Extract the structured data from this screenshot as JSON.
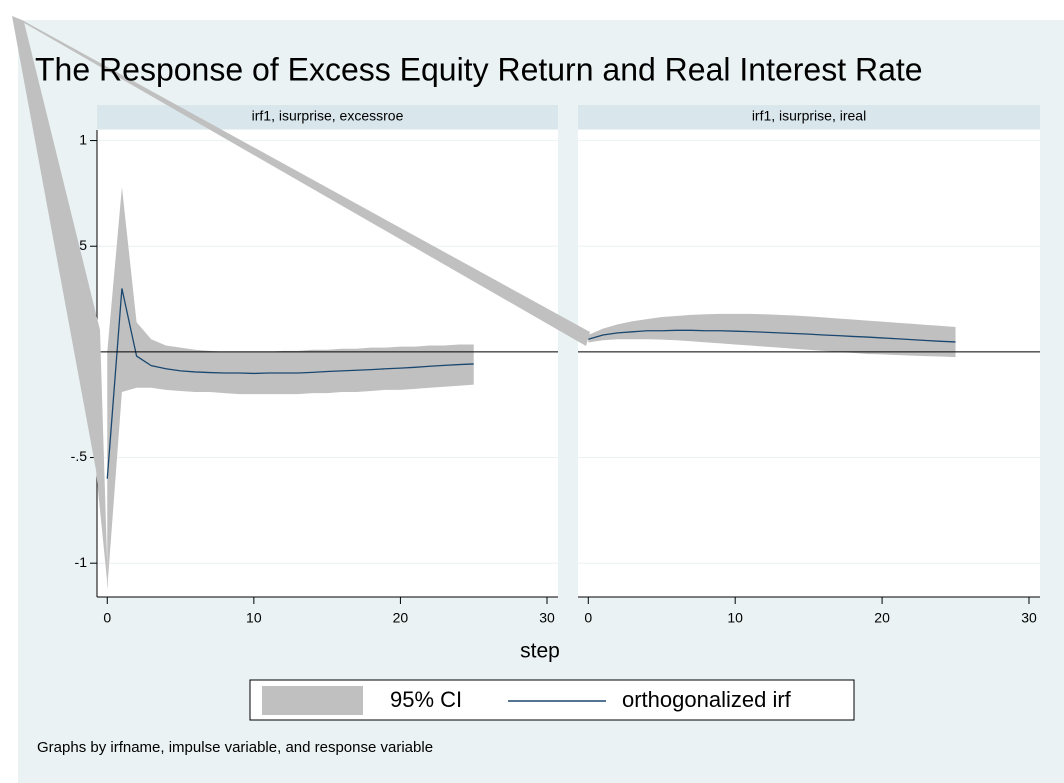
{
  "figure": {
    "title": "The Response of Excess Equity Return and Real Interest Rate",
    "xlabel": "step",
    "note": "Graphs by irfname, impulse variable, and response variable",
    "background": "#eaf2f3",
    "header_color": "#d9e6eb",
    "title_color": "#1e4a78"
  },
  "chart_data": [
    {
      "type": "line",
      "title": "irf1, isurprise, excessroe",
      "x": [
        0,
        1,
        2,
        3,
        4,
        5,
        6,
        7,
        8,
        9,
        10,
        11,
        12,
        13,
        14,
        15,
        16,
        17,
        18,
        19,
        20,
        21,
        22,
        23,
        24,
        25
      ],
      "series": [
        {
          "name": "95% CI",
          "color": "#c0c0c0",
          "lower": [
            -1.12,
            -0.19,
            -0.17,
            -0.17,
            -0.18,
            -0.185,
            -0.19,
            -0.19,
            -0.195,
            -0.2,
            -0.2,
            -0.2,
            -0.2,
            -0.2,
            -0.195,
            -0.195,
            -0.19,
            -0.19,
            -0.185,
            -0.18,
            -0.18,
            -0.175,
            -0.17,
            -0.165,
            -0.16,
            -0.155
          ],
          "upper": [
            0.0,
            0.78,
            0.14,
            0.06,
            0.03,
            0.02,
            0.01,
            0.005,
            0.0,
            0.0,
            0.0,
            0.0,
            0.005,
            0.005,
            0.01,
            0.01,
            0.015,
            0.015,
            0.02,
            0.02,
            0.025,
            0.025,
            0.03,
            0.03,
            0.035,
            0.035
          ]
        },
        {
          "name": "orthogonalized irf",
          "color": "#1a476f",
          "values": [
            -0.6,
            0.3,
            -0.02,
            -0.065,
            -0.08,
            -0.09,
            -0.095,
            -0.098,
            -0.1,
            -0.1,
            -0.102,
            -0.1,
            -0.1,
            -0.1,
            -0.097,
            -0.093,
            -0.09,
            -0.087,
            -0.084,
            -0.08,
            -0.077,
            -0.073,
            -0.068,
            -0.064,
            -0.06,
            -0.057
          ]
        }
      ],
      "xlim": [
        -0.7,
        30.75
      ],
      "xticks": [
        0,
        10,
        20,
        30
      ],
      "ylim": [
        -1.16,
        1.05
      ],
      "yticks": [
        {
          "value": -1,
          "label": "-1"
        },
        {
          "value": -0.5,
          "label": "-.5"
        },
        0,
        {
          "value": 0.5,
          "label": ".5"
        },
        1
      ],
      "yline": 0,
      "grid": true
    },
    {
      "type": "line",
      "title": "irf1, isurprise, ireal",
      "x": [
        0,
        1,
        2,
        3,
        4,
        5,
        6,
        7,
        8,
        9,
        10,
        11,
        12,
        13,
        14,
        15,
        16,
        17,
        18,
        19,
        20,
        21,
        22,
        23,
        24,
        25
      ],
      "series": [
        {
          "name": "95% CI",
          "color": "#c0c0c0",
          "lower": [
            0.045,
            0.055,
            0.06,
            0.06,
            0.06,
            0.058,
            0.055,
            0.05,
            0.045,
            0.04,
            0.035,
            0.03,
            0.025,
            0.02,
            0.015,
            0.01,
            0.005,
            0.0,
            -0.005,
            -0.01,
            -0.012,
            -0.015,
            -0.018,
            -0.02,
            -0.022,
            -0.025
          ],
          "upper": [
            0.08,
            0.11,
            0.13,
            0.145,
            0.155,
            0.165,
            0.17,
            0.175,
            0.178,
            0.18,
            0.18,
            0.18,
            0.178,
            0.175,
            0.172,
            0.168,
            0.163,
            0.158,
            0.153,
            0.148,
            0.143,
            0.138,
            0.133,
            0.128,
            0.123,
            0.118
          ]
        },
        {
          "name": "orthogonalized irf",
          "color": "#1a476f",
          "values": [
            0.06,
            0.08,
            0.09,
            0.095,
            0.1,
            0.1,
            0.102,
            0.102,
            0.1,
            0.1,
            0.098,
            0.096,
            0.093,
            0.09,
            0.087,
            0.084,
            0.08,
            0.077,
            0.073,
            0.07,
            0.066,
            0.062,
            0.058,
            0.054,
            0.05,
            0.047
          ]
        }
      ],
      "xlim": [
        -0.7,
        30.75
      ],
      "xticks": [
        0,
        10,
        20,
        30
      ],
      "ylim": [
        -1.16,
        1.05
      ],
      "yline": 0,
      "grid": true
    }
  ]
}
